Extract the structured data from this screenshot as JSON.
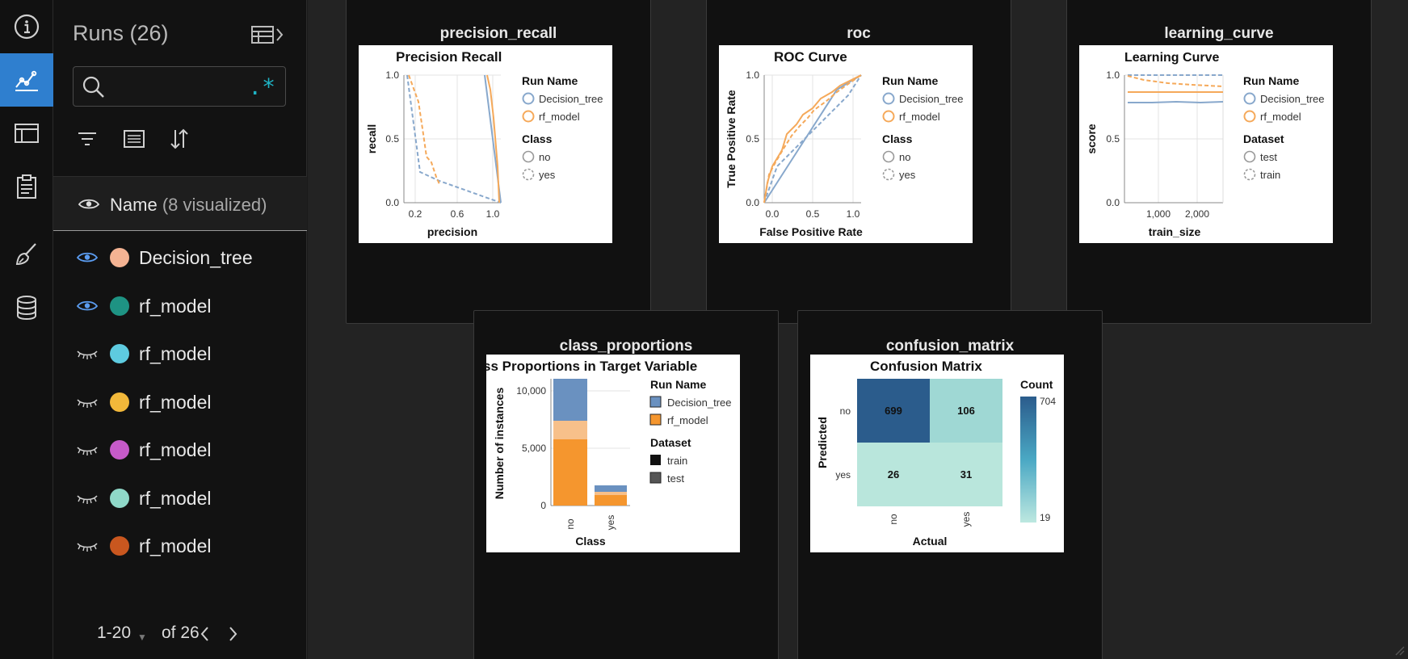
{
  "sidebar": {
    "title": "Runs (26)",
    "search": {
      "value": "",
      "placeholder": "",
      "regex_label": ".*"
    },
    "name_header": {
      "label": "Name",
      "visualized": "(8 visualized)"
    },
    "runs": [
      {
        "name": "Decision_tree",
        "visible": true,
        "color": "#f4b393"
      },
      {
        "name": "rf_model",
        "visible": true,
        "color": "#1e9383"
      },
      {
        "name": "rf_model",
        "visible": false,
        "color": "#5ecbe0"
      },
      {
        "name": "rf_model",
        "visible": false,
        "color": "#f2b83a"
      },
      {
        "name": "rf_model",
        "visible": false,
        "color": "#c65ac9"
      },
      {
        "name": "rf_model",
        "visible": false,
        "color": "#8fd8c8"
      },
      {
        "name": "rf_model",
        "visible": false,
        "color": "#c9571f"
      }
    ],
    "pager": {
      "range": "1-20",
      "of": "of 26"
    }
  },
  "rail": {
    "icons": [
      "info-icon",
      "charts-icon",
      "table-icon",
      "clipboard-icon",
      "brush-icon",
      "database-icon"
    ],
    "active": "charts-icon"
  },
  "panels": {
    "precision_recall": {
      "card_title": "precision_recall",
      "title": "Precision Recall",
      "xlabel": "precision",
      "ylabel": "recall",
      "xticks": [
        "0.2",
        "0.6",
        "1.0"
      ],
      "yticks": [
        "0.0",
        "0.5",
        "1.0"
      ],
      "legend_title_1": "Run Name",
      "legend_items_1": [
        "Decision_tree",
        "rf_model"
      ],
      "legend_title_2": "Class",
      "legend_items_2": [
        "no",
        "yes"
      ]
    },
    "roc": {
      "card_title": "roc",
      "title": "ROC Curve",
      "xlabel": "False Positive Rate",
      "ylabel": "True Positive Rate",
      "xticks": [
        "0.0",
        "0.5",
        "1.0"
      ],
      "yticks": [
        "0.0",
        "0.5",
        "1.0"
      ],
      "legend_title_1": "Run Name",
      "legend_items_1": [
        "Decision_tree",
        "rf_model"
      ],
      "legend_title_2": "Class",
      "legend_items_2": [
        "no",
        "yes"
      ]
    },
    "learning_curve": {
      "card_title": "learning_curve",
      "title": "Learning Curve",
      "xlabel": "train_size",
      "ylabel": "score",
      "xticks": [
        "1,000",
        "2,000"
      ],
      "yticks": [
        "0.0",
        "0.5",
        "1.0"
      ],
      "legend_title_1": "Run Name",
      "legend_items_1": [
        "Decision_tree",
        "rf_model"
      ],
      "legend_title_2": "Dataset",
      "legend_items_2": [
        "test",
        "train"
      ]
    },
    "class_proportions": {
      "card_title": "class_proportions",
      "title": "ss Proportions in Target Variable",
      "xlabel": "Class",
      "ylabel": "Number of instances",
      "xticks": [
        "no",
        "yes"
      ],
      "yticks": [
        "0",
        "5,000",
        "10,000"
      ],
      "legend_title_1": "Run Name",
      "legend_items_1": [
        "Decision_tree",
        "rf_model"
      ],
      "legend_title_2": "Dataset",
      "legend_items_2": [
        "train",
        "test"
      ]
    },
    "confusion_matrix": {
      "card_title": "confusion_matrix",
      "title": "Confusion Matrix",
      "xlabel": "Actual",
      "ylabel": "Predicted",
      "xticks": [
        "no",
        "yes"
      ],
      "yticks": [
        "no",
        "yes"
      ],
      "legend_title": "Count",
      "legend_max": "704",
      "legend_min": "19",
      "cells": [
        [
          "699",
          "106"
        ],
        [
          "26",
          "31"
        ]
      ]
    }
  },
  "colors": {
    "blue": "#88a8cc",
    "orange": "#f5a95a",
    "accent": "#2f7fcf"
  }
}
